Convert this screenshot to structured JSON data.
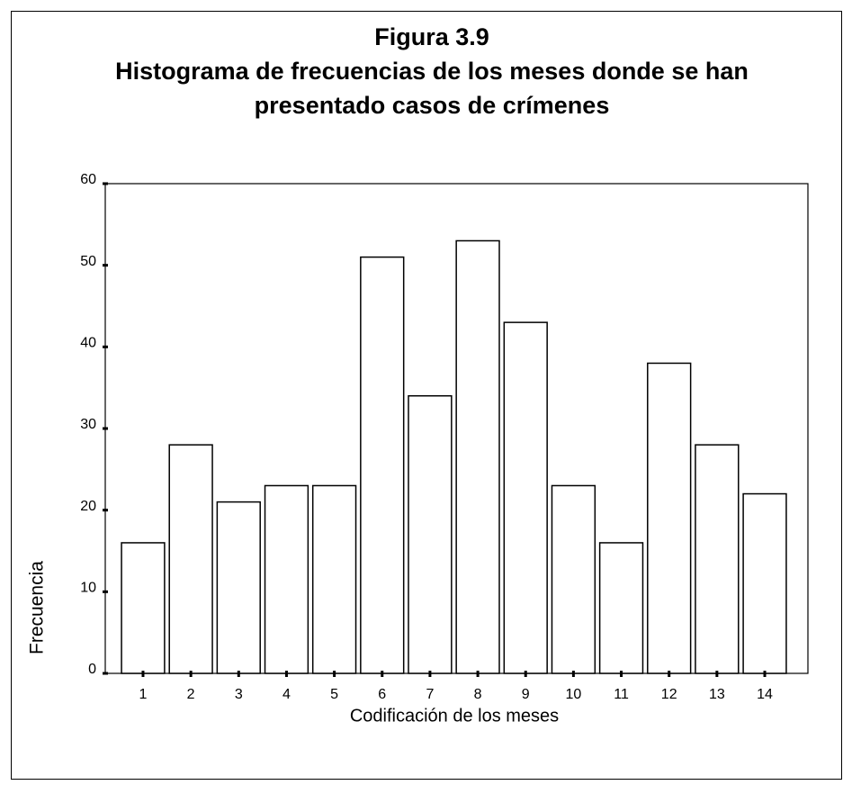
{
  "chart_data": {
    "type": "bar",
    "title": "Figura 3.9",
    "subtitle": "Histograma de frecuencias de los meses donde se han presentado casos de crímenes",
    "x_label": "Codificación de los meses",
    "y_label": "Frecuencia",
    "categories": [
      "1",
      "2",
      "3",
      "4",
      "5",
      "6",
      "7",
      "8",
      "9",
      "10",
      "11",
      "12",
      "13",
      "14"
    ],
    "values": [
      16,
      28,
      21,
      23,
      23,
      51,
      34,
      53,
      43,
      23,
      16,
      38,
      28,
      22
    ],
    "color": "#ffffff",
    "ylim": [
      0,
      60
    ],
    "yticks": [
      0,
      10,
      20,
      30,
      40,
      50,
      60
    ],
    "grid": false
  }
}
